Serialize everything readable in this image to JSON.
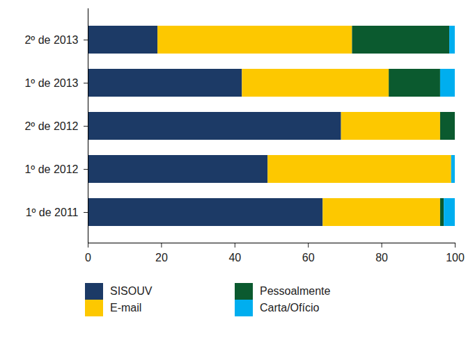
{
  "chart_data": {
    "type": "bar",
    "orientation": "horizontal",
    "stacked": true,
    "categories": [
      "2º de 2013",
      "1º de 2013",
      "2º de 2012",
      "1º de 2012",
      "1º de 2011"
    ],
    "series": [
      {
        "name": "SISOUV",
        "color": "#1c3a66",
        "values": [
          19,
          42,
          69,
          49,
          64
        ]
      },
      {
        "name": "E-mail",
        "color": "#fdc800",
        "values": [
          53,
          40,
          27,
          50,
          32
        ]
      },
      {
        "name": "Pessoalmente",
        "color": "#0b5a2f",
        "values": [
          26.5,
          14,
          4,
          0,
          1
        ]
      },
      {
        "name": "Carta/Ofício",
        "color": "#00aeef",
        "values": [
          1.5,
          4,
          0,
          1,
          3
        ]
      }
    ],
    "xlim": [
      0,
      100
    ],
    "xticks": [
      0,
      20,
      40,
      60,
      80,
      100
    ],
    "grid": false,
    "legend": "bottom"
  }
}
